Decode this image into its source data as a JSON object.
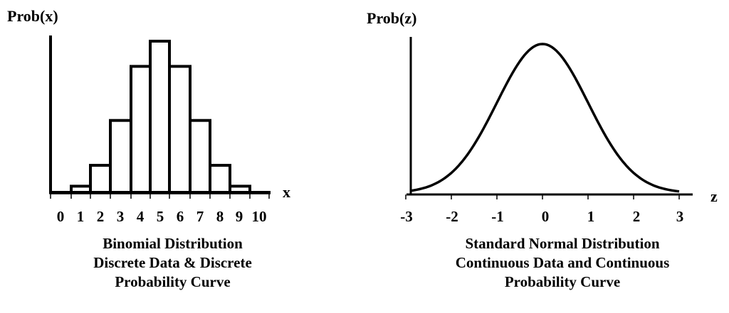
{
  "left_panel": {
    "y_label": "Prob(x)",
    "x_label": "x",
    "tick_labels": [
      "0",
      "1",
      "2",
      "3",
      "4",
      "5",
      "6",
      "7",
      "8",
      "9",
      "10"
    ],
    "caption": {
      "line1": "Binomial Distribution",
      "line2": "Discrete Data & Discrete",
      "line3": "Probability Curve"
    }
  },
  "right_panel": {
    "y_label": "Prob(z)",
    "x_label": "z",
    "tick_labels": [
      "-3",
      "-2",
      "-1",
      "0",
      "1",
      "2",
      "3"
    ],
    "caption": {
      "line1": "Standard Normal Distribution",
      "line2": "Continuous Data and Continuous",
      "line3": "Probability Curve"
    }
  },
  "colors": {
    "line": "#000000",
    "background": "#ffffff"
  },
  "chart_data": [
    {
      "type": "bar",
      "title": "Binomial Distribution — Discrete Data & Discrete Probability Curve",
      "xlabel": "x",
      "ylabel": "Prob(x)",
      "categories": [
        "0",
        "1",
        "2",
        "3",
        "4",
        "5",
        "6",
        "7",
        "8",
        "9",
        "10"
      ],
      "values": [
        0.001,
        0.01,
        0.044,
        0.117,
        0.205,
        0.246,
        0.205,
        0.117,
        0.044,
        0.01,
        0.001
      ],
      "ylim": [
        0,
        0.26
      ],
      "grid": false,
      "legend": null,
      "notes": "Unfilled outlined histogram bars; no y tick labels shown"
    },
    {
      "type": "line",
      "title": "Standard Normal Distribution — Continuous Data and Continuous Probability Curve",
      "xlabel": "z",
      "ylabel": "Prob(z)",
      "x": [
        -3,
        -2.5,
        -2,
        -1.5,
        -1,
        -0.5,
        0,
        0.5,
        1,
        1.5,
        2,
        2.5,
        3
      ],
      "values": [
        0.004,
        0.018,
        0.054,
        0.13,
        0.242,
        0.352,
        0.399,
        0.352,
        0.242,
        0.13,
        0.054,
        0.018,
        0.004
      ],
      "xlim": [
        -3,
        3.3
      ],
      "ylim": [
        0,
        0.42
      ],
      "grid": false,
      "legend": null,
      "notes": "Bell curve; no y tick labels shown"
    }
  ]
}
